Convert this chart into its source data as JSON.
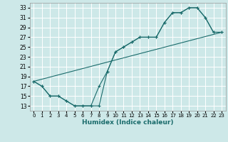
{
  "xlabel": "Humidex (Indice chaleur)",
  "bg_color": "#cde8e8",
  "grid_color": "#ffffff",
  "line_color": "#1a6b6b",
  "xlim": [
    -0.5,
    23.5
  ],
  "ylim": [
    12,
    34
  ],
  "xticks": [
    0,
    1,
    2,
    3,
    4,
    5,
    6,
    7,
    8,
    9,
    10,
    11,
    12,
    13,
    14,
    15,
    16,
    17,
    18,
    19,
    20,
    21,
    22,
    23
  ],
  "yticks": [
    13,
    15,
    17,
    19,
    21,
    23,
    25,
    27,
    29,
    31,
    33
  ],
  "curve1_x": [
    0,
    1,
    2,
    3,
    4,
    5,
    6,
    7,
    8,
    9,
    10,
    11,
    12,
    13,
    14,
    15,
    16,
    17,
    18,
    19,
    20,
    21,
    22,
    23
  ],
  "curve1_y": [
    18,
    17,
    15,
    15,
    14,
    13,
    13,
    13,
    13,
    20,
    24,
    25,
    26,
    27,
    27,
    27,
    30,
    32,
    32,
    33,
    33,
    31,
    28,
    28
  ],
  "curve2_x": [
    0,
    1,
    2,
    3,
    4,
    5,
    6,
    7,
    8,
    9,
    10,
    11,
    12,
    13,
    14,
    15,
    16,
    17,
    18,
    19,
    20,
    21,
    22,
    23
  ],
  "curve2_y": [
    18,
    17,
    15,
    15,
    14,
    13,
    13,
    13,
    17,
    20,
    24,
    25,
    26,
    27,
    27,
    27,
    30,
    32,
    32,
    33,
    33,
    31,
    28,
    28
  ],
  "line3_x": [
    0,
    23
  ],
  "line3_y": [
    18,
    28
  ]
}
